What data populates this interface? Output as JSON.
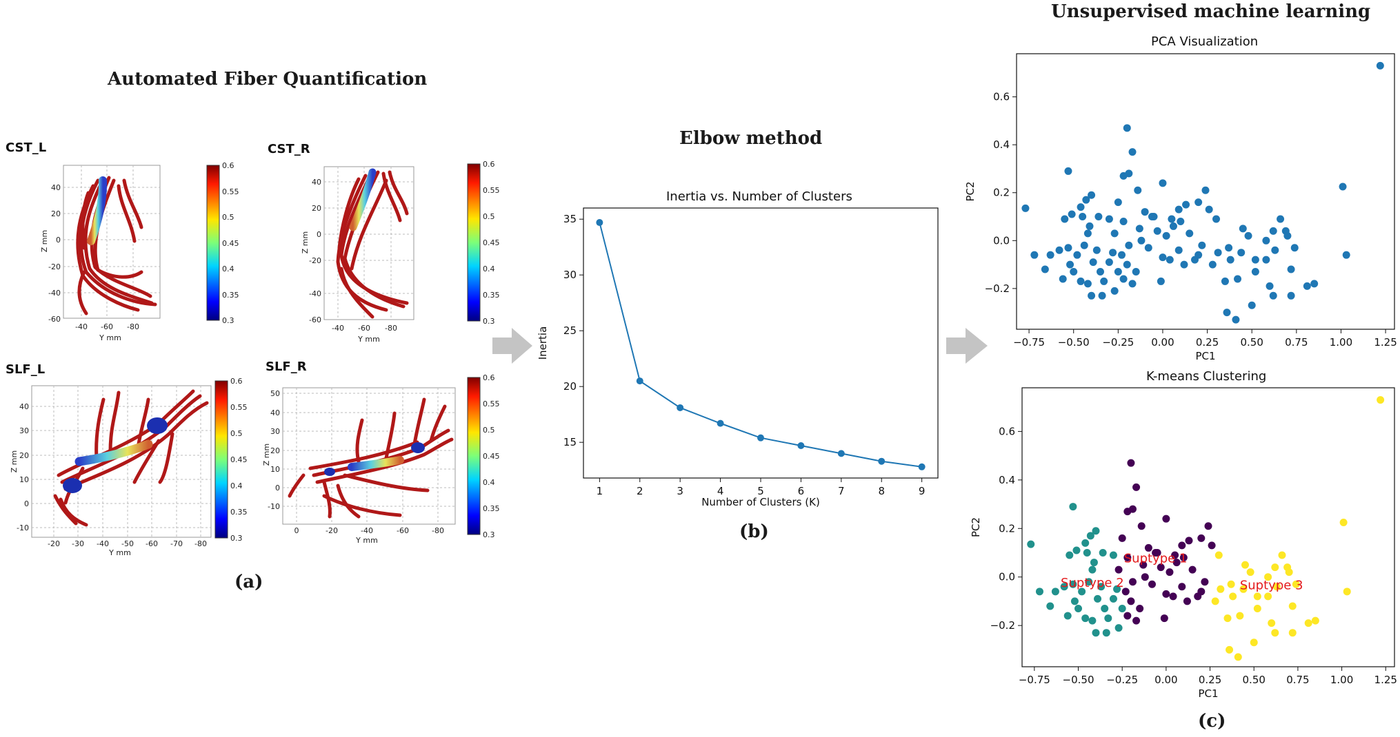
{
  "section_titles": {
    "afq": "Automated Fiber Quantification",
    "elbow": "Elbow method",
    "unsupervised": "Unsupervised machine learning"
  },
  "panel_labels": {
    "a": "(a)",
    "b": "(b)",
    "c": "(c)"
  },
  "tracts": [
    {
      "name": "CST_L",
      "xlabel": "Y mm",
      "ylabel": "Z mm",
      "xticks": [
        "-40",
        "-60",
        "-80"
      ],
      "yticks": [
        "40",
        "20",
        "0",
        "-20",
        "-40",
        "-60"
      ]
    },
    {
      "name": "CST_R",
      "xlabel": "Y mm",
      "ylabel": "Z mm",
      "xticks": [
        "-40",
        "-60",
        "-80"
      ],
      "yticks": [
        "40",
        "20",
        "0",
        "-20",
        "-40",
        "-60"
      ]
    },
    {
      "name": "SLF_L",
      "xlabel": "Y mm",
      "ylabel": "Z mm",
      "xticks": [
        "-20",
        "-30",
        "-40",
        "-50",
        "-60",
        "-70",
        "-80"
      ],
      "yticks": [
        "40",
        "30",
        "20",
        "10",
        "0",
        "-10"
      ]
    },
    {
      "name": "SLF_R",
      "xlabel": "Y mm",
      "ylabel": "Z mm",
      "xticks": [
        "0",
        "-20",
        "-40",
        "-60",
        "-80"
      ],
      "yticks": [
        "50",
        "40",
        "30",
        "20",
        "10",
        "0",
        "-10"
      ]
    }
  ],
  "colorbar_ticks": [
    "0.6",
    "0.55",
    "0.5",
    "0.45",
    "0.4",
    "0.35",
    "0.3"
  ],
  "colors": {
    "fiber": "#b01818",
    "series": "#1f77b4",
    "cluster1": "#440154",
    "cluster2": "#21918c",
    "cluster3": "#fde725",
    "annotation": "#e31a1c",
    "arrow": "#c4c4c4"
  },
  "chart_data": [
    {
      "type": "line",
      "title": "Inertia vs. Number of Clusters",
      "xlabel": "Number of Clusters (K)",
      "ylabel": "Inertia",
      "x": [
        1,
        2,
        3,
        4,
        5,
        6,
        7,
        8,
        9
      ],
      "y": [
        34.7,
        20.5,
        18.1,
        16.7,
        15.4,
        14.7,
        14.0,
        13.3,
        12.8
      ],
      "xlim": [
        0.6,
        9.4
      ],
      "ylim": [
        11.8,
        36.0
      ],
      "xticks": [
        1,
        2,
        3,
        4,
        5,
        6,
        7,
        8,
        9
      ],
      "yticks": [
        15,
        20,
        25,
        30,
        35
      ],
      "grid": false
    },
    {
      "type": "scatter",
      "title": "PCA Visualization",
      "xlabel": "PC1",
      "ylabel": "PC2",
      "xlim": [
        -0.82,
        1.3
      ],
      "ylim": [
        -0.37,
        0.78
      ],
      "xticks": [
        -0.75,
        -0.5,
        -0.25,
        0.0,
        0.25,
        0.5,
        0.75,
        1.0,
        1.25
      ],
      "xtick_labels": [
        "−0.75",
        "−0.50",
        "−0.25",
        "0.00",
        "0.25",
        "0.50",
        "0.75",
        "1.00",
        "1.25"
      ],
      "yticks": [
        -0.2,
        0.0,
        0.2,
        0.4,
        0.6
      ],
      "ytick_labels": [
        "−0.2",
        "0.0",
        "0.2",
        "0.4",
        "0.6"
      ],
      "grid": false
    },
    {
      "type": "scatter",
      "title": "K-means Clustering",
      "xlabel": "PC1",
      "ylabel": "PC2",
      "xlim": [
        -0.82,
        1.3
      ],
      "ylim": [
        -0.37,
        0.78
      ],
      "xticks": [
        -0.75,
        -0.5,
        -0.25,
        0.0,
        0.25,
        0.5,
        0.75,
        1.0,
        1.25
      ],
      "xtick_labels": [
        "−0.75",
        "−0.50",
        "−0.25",
        "0.00",
        "0.25",
        "0.50",
        "0.75",
        "1.00",
        "1.25"
      ],
      "yticks": [
        -0.2,
        0.0,
        0.2,
        0.4,
        0.6
      ],
      "ytick_labels": [
        "−0.2",
        "0.0",
        "0.2",
        "0.4",
        "0.6"
      ],
      "annotations": [
        {
          "text": "Suptype 1",
          "x": -0.24,
          "y": 0.06
        },
        {
          "text": "Suptype 2",
          "x": -0.6,
          "y": -0.04
        },
        {
          "text": "Suptype 3",
          "x": 0.42,
          "y": -0.05
        }
      ],
      "grid": false
    }
  ],
  "points": [
    [
      1.22,
      0.73,
      3
    ],
    [
      1.01,
      0.225,
      3
    ],
    [
      1.03,
      -0.06,
      3
    ],
    [
      0.85,
      -0.18,
      3
    ],
    [
      0.81,
      -0.19,
      3
    ],
    [
      0.72,
      -0.23,
      3
    ],
    [
      0.62,
      -0.23,
      3
    ],
    [
      0.5,
      -0.27,
      3
    ],
    [
      0.41,
      -0.33,
      3
    ],
    [
      0.36,
      -0.3,
      3
    ],
    [
      0.72,
      -0.12,
      3
    ],
    [
      0.6,
      -0.19,
      3
    ],
    [
      0.52,
      -0.13,
      3
    ],
    [
      0.42,
      -0.16,
      3
    ],
    [
      0.35,
      -0.17,
      3
    ],
    [
      0.28,
      -0.1,
      3
    ],
    [
      0.31,
      -0.05,
      3
    ],
    [
      0.37,
      -0.03,
      3
    ],
    [
      0.44,
      -0.05,
      3
    ],
    [
      0.52,
      -0.08,
      3
    ],
    [
      0.58,
      -0.08,
      3
    ],
    [
      0.63,
      -0.04,
      3
    ],
    [
      0.66,
      0.09,
      3
    ],
    [
      0.69,
      0.04,
      3
    ],
    [
      0.7,
      0.02,
      3
    ],
    [
      0.62,
      0.04,
      3
    ],
    [
      0.74,
      -0.03,
      3
    ],
    [
      0.48,
      0.02,
      3
    ],
    [
      0.45,
      0.05,
      3
    ],
    [
      0.3,
      0.09,
      3
    ],
    [
      0.38,
      -0.08,
      3
    ],
    [
      0.58,
      0.0,
      3
    ],
    [
      -0.2,
      0.47,
      1
    ],
    [
      -0.19,
      0.28,
      1
    ],
    [
      -0.17,
      0.37,
      1
    ],
    [
      -0.14,
      0.21,
      1
    ],
    [
      0.0,
      0.24,
      1
    ],
    [
      -0.22,
      0.27,
      1
    ],
    [
      -0.1,
      0.12,
      1
    ],
    [
      -0.05,
      0.1,
      1
    ],
    [
      0.05,
      0.09,
      1
    ],
    [
      0.09,
      0.13,
      1
    ],
    [
      0.13,
      0.15,
      1
    ],
    [
      0.2,
      0.16,
      1
    ],
    [
      0.24,
      0.21,
      1
    ],
    [
      -0.03,
      0.04,
      1
    ],
    [
      0.02,
      0.02,
      1
    ],
    [
      0.06,
      0.06,
      1
    ],
    [
      -0.12,
      0.0,
      1
    ],
    [
      -0.19,
      -0.02,
      1
    ],
    [
      -0.23,
      -0.06,
      1
    ],
    [
      -0.2,
      -0.1,
      1
    ],
    [
      -0.15,
      -0.13,
      1
    ],
    [
      -0.17,
      -0.18,
      1
    ],
    [
      -0.08,
      -0.03,
      1
    ],
    [
      0.0,
      -0.07,
      1
    ],
    [
      0.04,
      -0.08,
      1
    ],
    [
      0.09,
      -0.04,
      1
    ],
    [
      0.12,
      -0.1,
      1
    ],
    [
      0.15,
      0.03,
      1
    ],
    [
      0.2,
      -0.06,
      1
    ],
    [
      0.22,
      -0.02,
      1
    ],
    [
      0.26,
      0.13,
      1
    ],
    [
      -0.06,
      0.1,
      1
    ],
    [
      -0.13,
      0.05,
      1
    ],
    [
      -0.22,
      0.08,
      1
    ],
    [
      -0.25,
      0.16,
      1
    ],
    [
      -0.27,
      0.03,
      1
    ],
    [
      -0.01,
      -0.17,
      1
    ],
    [
      0.1,
      0.08,
      1
    ],
    [
      -0.22,
      -0.16,
      1
    ],
    [
      0.18,
      -0.08,
      1
    ],
    [
      -0.77,
      0.135,
      2
    ],
    [
      -0.53,
      0.29,
      2
    ],
    [
      -0.51,
      0.11,
      2
    ],
    [
      -0.55,
      0.09,
      2
    ],
    [
      -0.46,
      0.14,
      2
    ],
    [
      -0.43,
      0.17,
      2
    ],
    [
      -0.4,
      0.19,
      2
    ],
    [
      -0.45,
      0.1,
      2
    ],
    [
      -0.41,
      0.06,
      2
    ],
    [
      -0.36,
      0.1,
      2
    ],
    [
      -0.3,
      0.09,
      2
    ],
    [
      -0.42,
      0.03,
      2
    ],
    [
      -0.44,
      -0.02,
      2
    ],
    [
      -0.48,
      -0.06,
      2
    ],
    [
      -0.53,
      -0.03,
      2
    ],
    [
      -0.58,
      -0.04,
      2
    ],
    [
      -0.63,
      -0.06,
      2
    ],
    [
      -0.66,
      -0.12,
      2
    ],
    [
      -0.72,
      -0.06,
      2
    ],
    [
      -0.52,
      -0.1,
      2
    ],
    [
      -0.5,
      -0.13,
      2
    ],
    [
      -0.46,
      -0.17,
      2
    ],
    [
      -0.42,
      -0.18,
      2
    ],
    [
      -0.4,
      -0.23,
      2
    ],
    [
      -0.35,
      -0.13,
      2
    ],
    [
      -0.33,
      -0.17,
      2
    ],
    [
      -0.34,
      -0.23,
      2
    ],
    [
      -0.3,
      -0.09,
      2
    ],
    [
      -0.37,
      -0.04,
      2
    ],
    [
      -0.28,
      -0.05,
      2
    ],
    [
      -0.25,
      -0.13,
      2
    ],
    [
      -0.27,
      -0.21,
      2
    ],
    [
      -0.39,
      -0.09,
      2
    ],
    [
      -0.56,
      -0.16,
      2
    ]
  ]
}
